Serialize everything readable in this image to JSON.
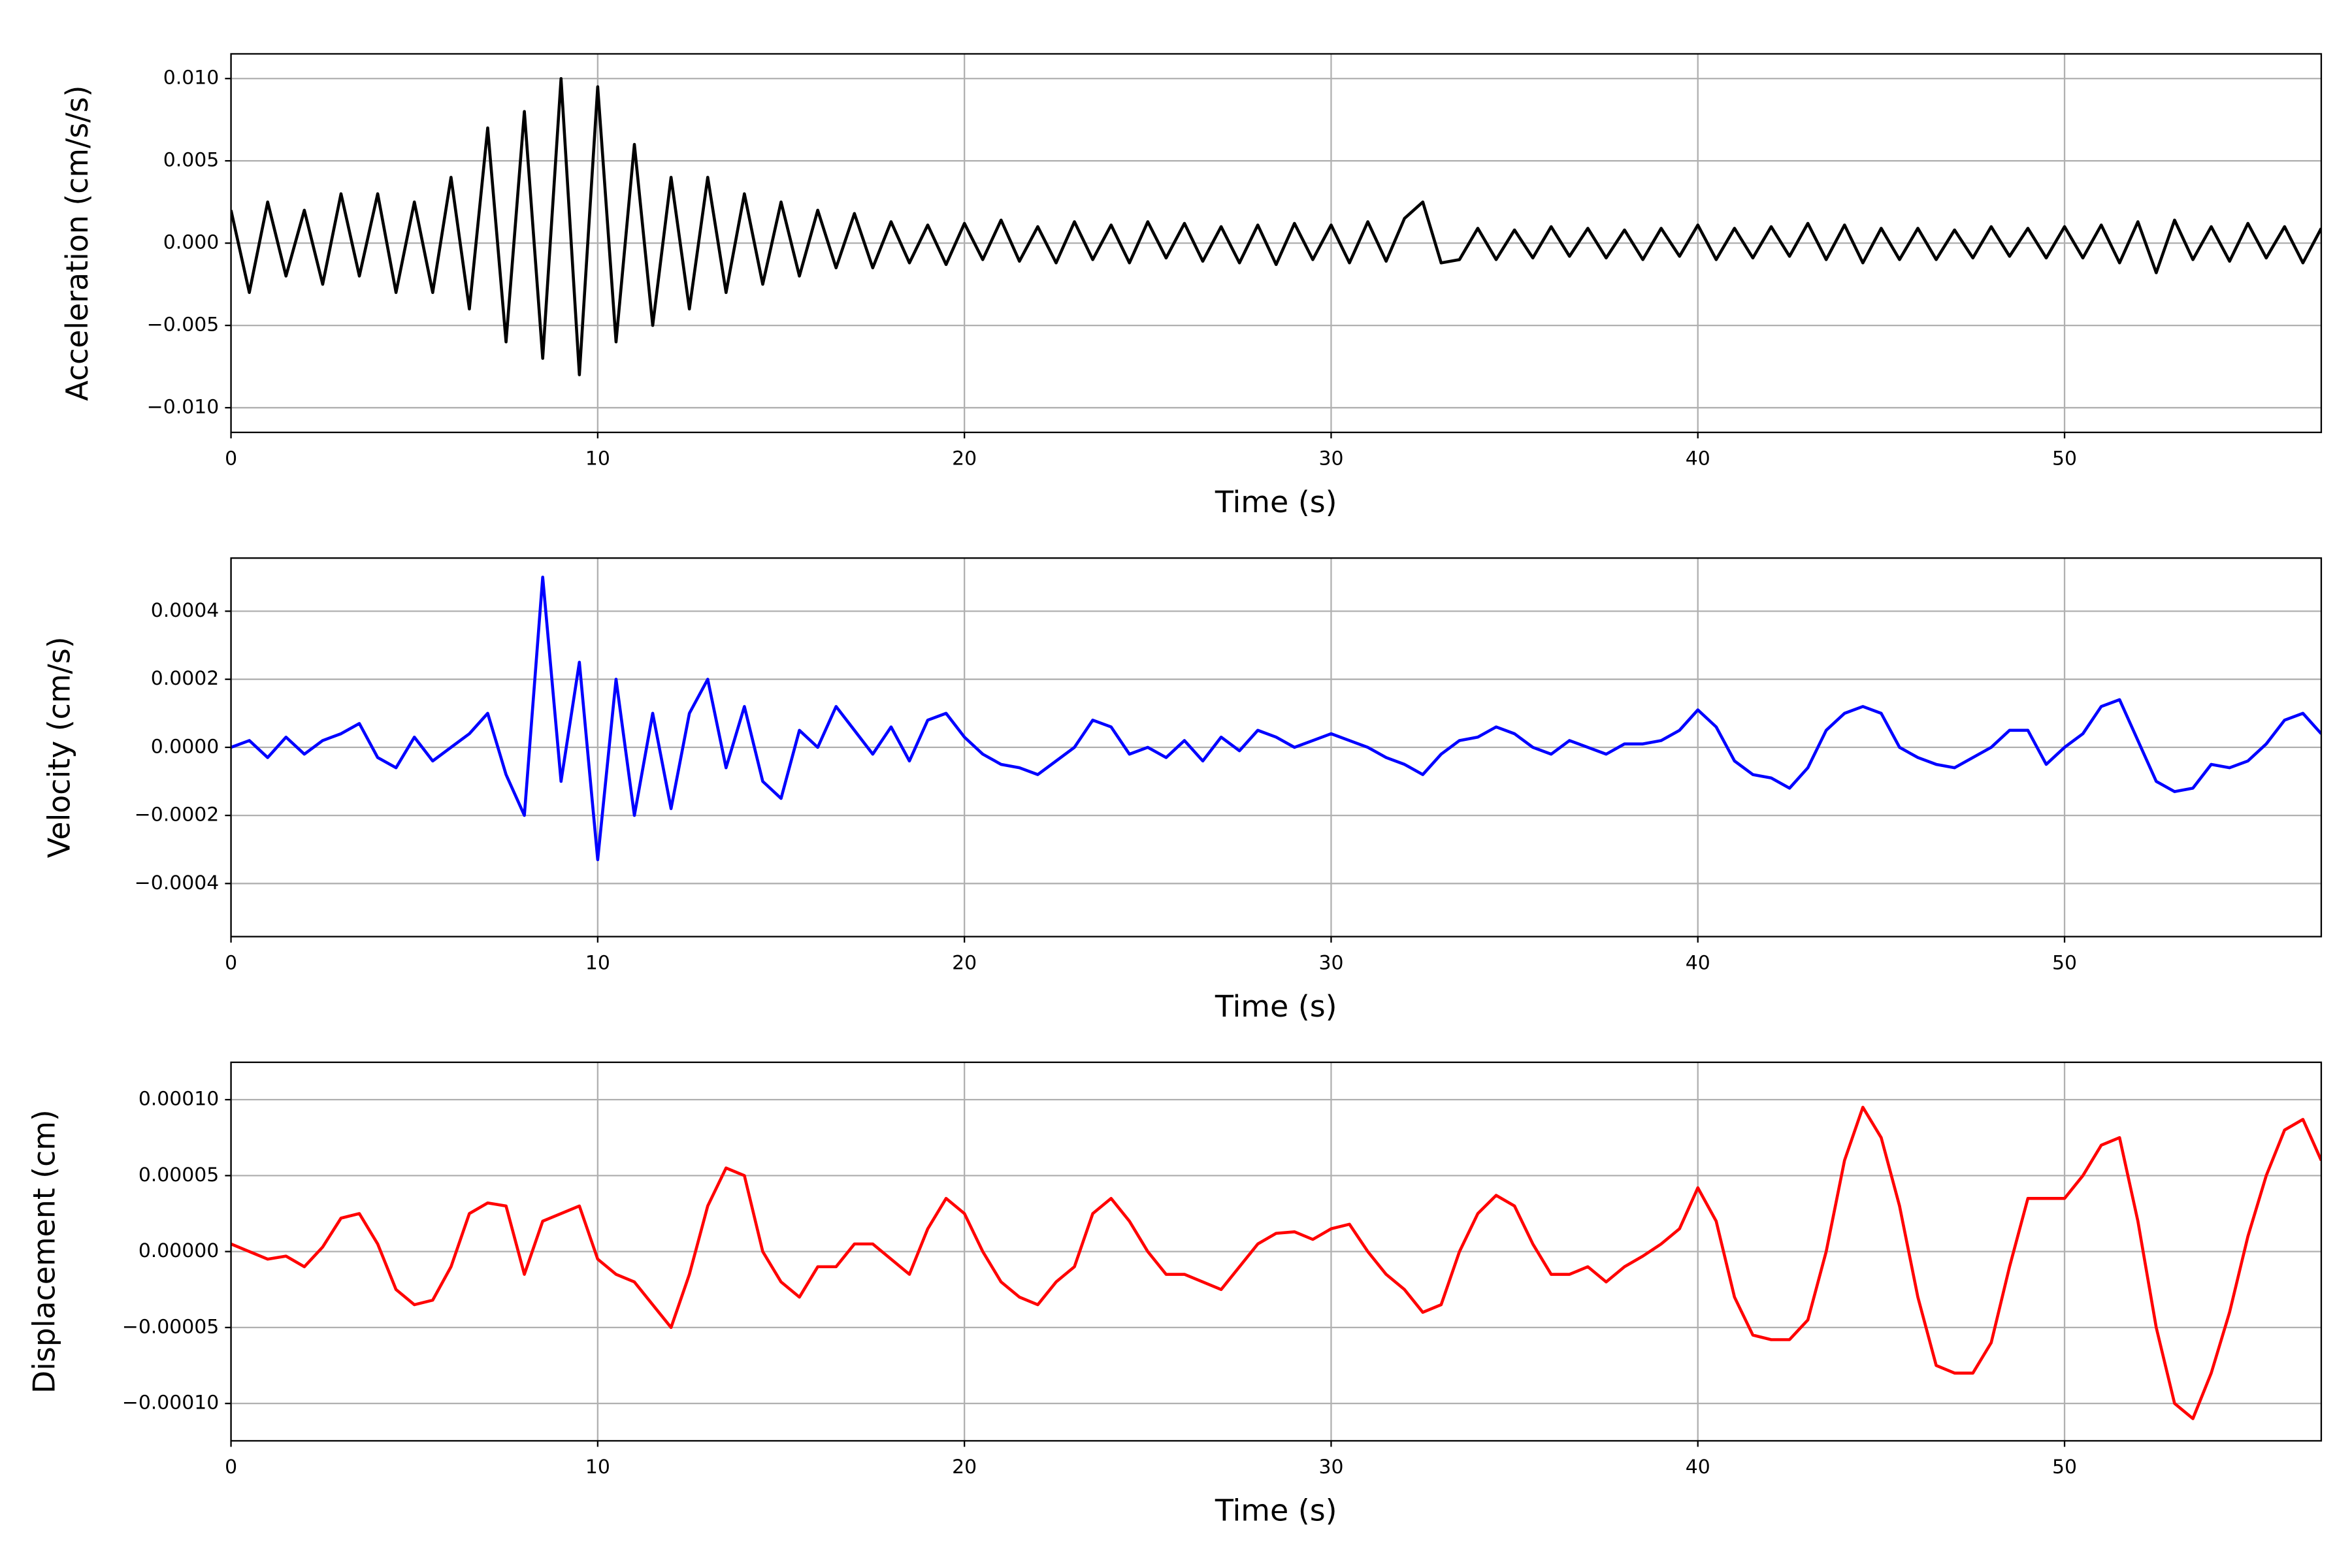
{
  "chart_data": [
    {
      "type": "line",
      "ylabel": "Acceleration (cm/s/s)",
      "xlabel": "Time (s)",
      "grid": true,
      "xlim": [
        0,
        57
      ],
      "xticks": [
        0,
        10,
        20,
        30,
        40,
        50
      ],
      "ylim": [
        -0.0115,
        0.0115
      ],
      "yticks": [
        {
          "value": -0.01,
          "label": "−0.010"
        },
        {
          "value": -0.005,
          "label": "−0.005"
        },
        {
          "value": 0,
          "label": "0.000"
        },
        0.005,
        {
          "value": 0.01,
          "label": "0.010"
        }
      ],
      "color": "#000000",
      "x": [
        0,
        0.5,
        1,
        1.5,
        2,
        2.5,
        3,
        3.5,
        4,
        4.5,
        5,
        5.5,
        6,
        6.5,
        7,
        7.5,
        8,
        8.5,
        9,
        9.5,
        10,
        10.5,
        11,
        11.5,
        12,
        12.5,
        13,
        13.5,
        14,
        14.5,
        15,
        15.5,
        16,
        16.5,
        17,
        17.5,
        18,
        18.5,
        19,
        19.5,
        20,
        20.5,
        21,
        21.5,
        22,
        22.5,
        23,
        23.5,
        24,
        24.5,
        25,
        25.5,
        26,
        26.5,
        27,
        27.5,
        28,
        28.5,
        29,
        29.5,
        30,
        30.5,
        31,
        31.5,
        32,
        32.5,
        33,
        33.5,
        34,
        34.5,
        35,
        35.5,
        36,
        36.5,
        37,
        37.5,
        38,
        38.5,
        39,
        39.5,
        40,
        40.5,
        41,
        41.5,
        42,
        42.5,
        43,
        43.5,
        44,
        44.5,
        45,
        45.5,
        46,
        46.5,
        47,
        47.5,
        48,
        48.5,
        49,
        49.5,
        50,
        50.5,
        51,
        51.5,
        52,
        52.5,
        53,
        53.5,
        54,
        54.5,
        55,
        55.5,
        56,
        56.5,
        57
      ],
      "values": [
        0.002,
        -0.003,
        0.0025,
        -0.002,
        0.002,
        -0.0025,
        0.003,
        -0.002,
        0.003,
        -0.003,
        0.0025,
        -0.003,
        0.004,
        -0.004,
        0.007,
        -0.006,
        0.008,
        -0.007,
        0.01,
        -0.008,
        0.0095,
        -0.006,
        0.006,
        -0.005,
        0.004,
        -0.004,
        0.004,
        -0.003,
        0.003,
        -0.0025,
        0.0025,
        -0.002,
        0.002,
        -0.0015,
        0.0018,
        -0.0015,
        0.0013,
        -0.0012,
        0.0011,
        -0.0013,
        0.0012,
        -0.001,
        0.0014,
        -0.0011,
        0.001,
        -0.0012,
        0.0013,
        -0.001,
        0.0011,
        -0.0012,
        0.0013,
        -0.0009,
        0.0012,
        -0.0011,
        0.001,
        -0.0012,
        0.0011,
        -0.0013,
        0.0012,
        -0.001,
        0.0011,
        -0.0012,
        0.0013,
        -0.0011,
        0.0015,
        0.0025,
        -0.0012,
        -0.001,
        0.0009,
        -0.001,
        0.0008,
        -0.0009,
        0.001,
        -0.0008,
        0.0009,
        -0.0009,
        0.0008,
        -0.001,
        0.0009,
        -0.0008,
        0.0011,
        -0.001,
        0.0009,
        -0.0009,
        0.001,
        -0.0008,
        0.0012,
        -0.001,
        0.0011,
        -0.0012,
        0.0009,
        -0.001,
        0.0009,
        -0.001,
        0.0008,
        -0.0009,
        0.001,
        -0.0008,
        0.0009,
        -0.0009,
        0.001,
        -0.0009,
        0.0011,
        -0.0012,
        0.0013,
        -0.0018,
        0.0014,
        -0.001,
        0.001,
        -0.0011,
        0.0012,
        -0.0009,
        0.001,
        -0.0012,
        0.0009
      ]
    },
    {
      "type": "line",
      "ylabel": "Velocity (cm/s)",
      "xlabel": "Time (s)",
      "grid": true,
      "xlim": [
        0,
        57
      ],
      "xticks": [
        0,
        10,
        20,
        30,
        40,
        50
      ],
      "ylim": [
        -0.000556,
        0.000556
      ],
      "yticks": [
        {
          "value": -0.0004,
          "label": "−0.0004"
        },
        {
          "value": -0.0002,
          "label": "−0.0002"
        },
        {
          "value": 0,
          "label": "0.0000"
        },
        0.0002,
        0.0004
      ],
      "color": "#0000ff",
      "x": [
        0,
        0.5,
        1,
        1.5,
        2,
        2.5,
        3,
        3.5,
        4,
        4.5,
        5,
        5.5,
        6,
        6.5,
        7,
        7.5,
        8,
        8.5,
        9,
        9.5,
        10,
        10.5,
        11,
        11.5,
        12,
        12.5,
        13,
        13.5,
        14,
        14.5,
        15,
        15.5,
        16,
        16.5,
        17,
        17.5,
        18,
        18.5,
        19,
        19.5,
        20,
        20.5,
        21,
        21.5,
        22,
        22.5,
        23,
        23.5,
        24,
        24.5,
        25,
        25.5,
        26,
        26.5,
        27,
        27.5,
        28,
        28.5,
        29,
        29.5,
        30,
        30.5,
        31,
        31.5,
        32,
        32.5,
        33,
        33.5,
        34,
        34.5,
        35,
        35.5,
        36,
        36.5,
        37,
        37.5,
        38,
        38.5,
        39,
        39.5,
        40,
        40.5,
        41,
        41.5,
        42,
        42.5,
        43,
        43.5,
        44,
        44.5,
        45,
        45.5,
        46,
        46.5,
        47,
        47.5,
        48,
        48.5,
        49,
        49.5,
        50,
        50.5,
        51,
        51.5,
        52,
        52.5,
        53,
        53.5,
        54,
        54.5,
        55,
        55.5,
        56,
        56.5,
        57
      ],
      "values": [
        0,
        2e-05,
        -3e-05,
        3e-05,
        -2e-05,
        2e-05,
        4e-05,
        7e-05,
        -3e-05,
        -6e-05,
        3e-05,
        -4e-05,
        0,
        4e-05,
        0.0001,
        -8e-05,
        -0.0002,
        0.0005,
        -0.0001,
        0.00025,
        -0.00033,
        0.0002,
        -0.0002,
        0.0001,
        -0.00018,
        0.0001,
        0.0002,
        -6e-05,
        0.00012,
        -0.0001,
        -0.00015,
        5e-05,
        0,
        0.00012,
        5e-05,
        -2e-05,
        6e-05,
        -4e-05,
        8e-05,
        0.0001,
        3e-05,
        -2e-05,
        -5e-05,
        -6e-05,
        -8e-05,
        -4e-05,
        0,
        8e-05,
        6e-05,
        -2e-05,
        0,
        -3e-05,
        2e-05,
        -4e-05,
        3e-05,
        -1e-05,
        5e-05,
        3e-05,
        0,
        2e-05,
        4e-05,
        2e-05,
        0,
        -3e-05,
        -5e-05,
        -8e-05,
        -2e-05,
        2e-05,
        3e-05,
        6e-05,
        4e-05,
        0,
        -2e-05,
        2e-05,
        0,
        -2e-05,
        1e-05,
        1e-05,
        2e-05,
        5e-05,
        0.00011,
        6e-05,
        -4e-05,
        -8e-05,
        -9e-05,
        -0.00012,
        -6e-05,
        5e-05,
        0.0001,
        0.00012,
        0.0001,
        0,
        -3e-05,
        -5e-05,
        -6e-05,
        -3e-05,
        0,
        5e-05,
        5e-05,
        -5e-05,
        0,
        4e-05,
        0.00012,
        0.00014,
        2e-05,
        -0.0001,
        -0.00013,
        -0.00012,
        -5e-05,
        -6e-05,
        -4e-05,
        1e-05,
        8e-05,
        0.0001,
        4e-05
      ]
    },
    {
      "type": "line",
      "ylabel": "Displacement (cm)",
      "xlabel": "Time (s)",
      "grid": true,
      "xlim": [
        0,
        57
      ],
      "xticks": [
        0,
        10,
        20,
        30,
        40,
        50
      ],
      "ylim": [
        -0.0001246,
        0.0001246
      ],
      "yticks": [
        {
          "value": -0.0001,
          "label": "−0.00010"
        },
        {
          "value": -5e-05,
          "label": "−0.00005"
        },
        {
          "value": 0,
          "label": "0.00000"
        },
        5e-05,
        {
          "value": 0.0001,
          "label": "0.00010"
        }
      ],
      "color": "#ff0000",
      "x": [
        0,
        0.5,
        1,
        1.5,
        2,
        2.5,
        3,
        3.5,
        4,
        4.5,
        5,
        5.5,
        6,
        6.5,
        7,
        7.5,
        8,
        8.5,
        9,
        9.5,
        10,
        10.5,
        11,
        11.5,
        12,
        12.5,
        13,
        13.5,
        14,
        14.5,
        15,
        15.5,
        16,
        16.5,
        17,
        17.5,
        18,
        18.5,
        19,
        19.5,
        20,
        20.5,
        21,
        21.5,
        22,
        22.5,
        23,
        23.5,
        24,
        24.5,
        25,
        25.5,
        26,
        26.5,
        27,
        27.5,
        28,
        28.5,
        29,
        29.5,
        30,
        30.5,
        31,
        31.5,
        32,
        32.5,
        33,
        33.5,
        34,
        34.5,
        35,
        35.5,
        36,
        36.5,
        37,
        37.5,
        38,
        38.5,
        39,
        39.5,
        40,
        40.5,
        41,
        41.5,
        42,
        42.5,
        43,
        43.5,
        44,
        44.5,
        45,
        45.5,
        46,
        46.5,
        47,
        47.5,
        48,
        48.5,
        49,
        49.5,
        50,
        50.5,
        51,
        51.5,
        52,
        52.5,
        53,
        53.5,
        54,
        54.5,
        55,
        55.5,
        56,
        56.5,
        57
      ],
      "values": [
        5e-06,
        0,
        -5e-06,
        -3e-06,
        -1e-05,
        3e-06,
        2.2e-05,
        2.5e-05,
        5e-06,
        -2.5e-05,
        -3.5e-05,
        -3.2e-05,
        -1e-05,
        2.5e-05,
        3.2e-05,
        3e-05,
        -1.5e-05,
        2e-05,
        2.5e-05,
        3e-05,
        -5e-06,
        -1.5e-05,
        -2e-05,
        -3.5e-05,
        -5e-05,
        -1.5e-05,
        3e-05,
        5.5e-05,
        5e-05,
        0,
        -2e-05,
        -3e-05,
        -1e-05,
        -1e-05,
        5e-06,
        5e-06,
        -5e-06,
        -1.5e-05,
        1.5e-05,
        3.5e-05,
        2.5e-05,
        0,
        -2e-05,
        -3e-05,
        -3.5e-05,
        -2e-05,
        -1e-05,
        2.5e-05,
        3.5e-05,
        2e-05,
        0,
        -1.5e-05,
        -1.5e-05,
        -2e-05,
        -2.5e-05,
        -1e-05,
        5e-06,
        1.2e-05,
        1.3e-05,
        8e-06,
        1.5e-05,
        1.8e-05,
        0,
        -1.5e-05,
        -2.5e-05,
        -4e-05,
        -3.5e-05,
        0,
        2.5e-05,
        3.7e-05,
        3e-05,
        5e-06,
        -1.5e-05,
        -1.5e-05,
        -1e-05,
        -2e-05,
        -1e-05,
        -3e-06,
        5e-06,
        1.5e-05,
        4.2e-05,
        2e-05,
        -3e-05,
        -5.5e-05,
        -5.8e-05,
        -5.8e-05,
        -4.5e-05,
        0,
        6e-05,
        9.5e-05,
        7.5e-05,
        3e-05,
        -3e-05,
        -7.5e-05,
        -8e-05,
        -8e-05,
        -6e-05,
        -1e-05,
        3.5e-05,
        3.5e-05,
        3.5e-05,
        5e-05,
        7e-05,
        7.5e-05,
        2e-05,
        -5e-05,
        -0.0001,
        -0.00011,
        -8e-05,
        -4e-05,
        1e-05,
        5e-05,
        8e-05,
        8.7e-05,
        6e-05
      ]
    }
  ]
}
